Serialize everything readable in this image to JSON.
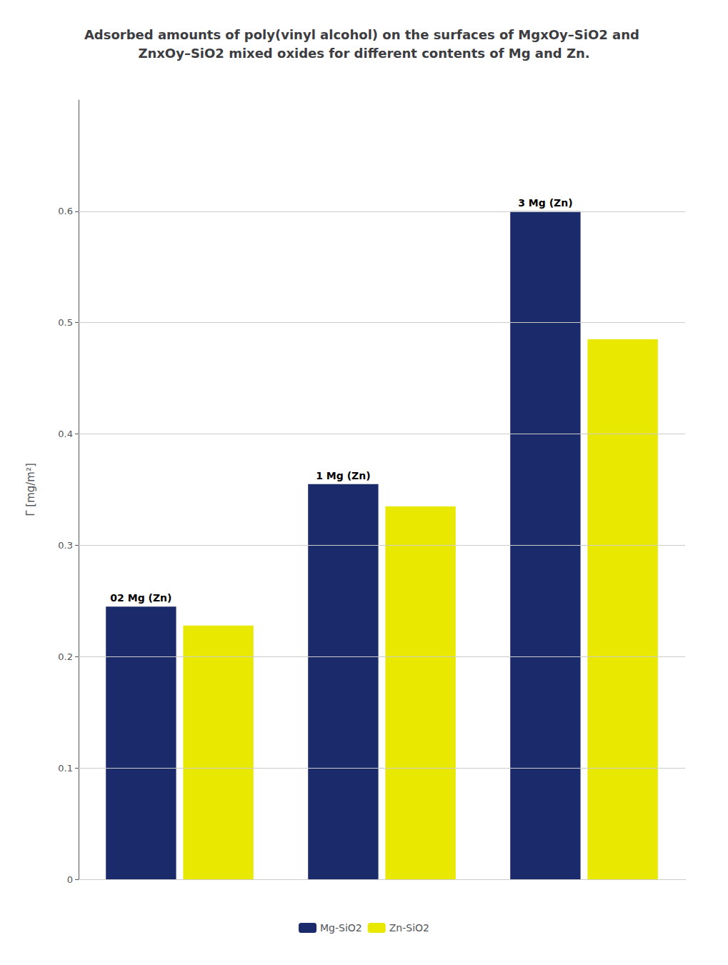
{
  "chart_data": {
    "type": "bar",
    "title": "Adsorbed amounts of poly(vinyl alcohol) on the surfaces of MgxOy–SiO2 and ZnxOy–SiO2 mixed oxides for different contents of Mg and Zn.",
    "y_label": "Γ [mg/m²]",
    "categories": [
      "02 Mg (Zn)",
      "1 Mg (Zn)",
      "3 Mg (Zn)"
    ],
    "series": [
      {
        "name": "Mg-SiO2",
        "color": "#1B2A6B",
        "values": [
          0.245,
          0.355,
          0.6
        ]
      },
      {
        "name": "Zn-SiO2",
        "color": "#E8E800",
        "values": [
          0.228,
          0.335,
          0.485
        ]
      }
    ],
    "ylim": [
      0,
      0.7
    ],
    "yticks": [
      0,
      0.1,
      0.2,
      0.3,
      0.4,
      0.5,
      0.6
    ],
    "grid": true,
    "legend": "bottom",
    "tick_labels": "y"
  }
}
